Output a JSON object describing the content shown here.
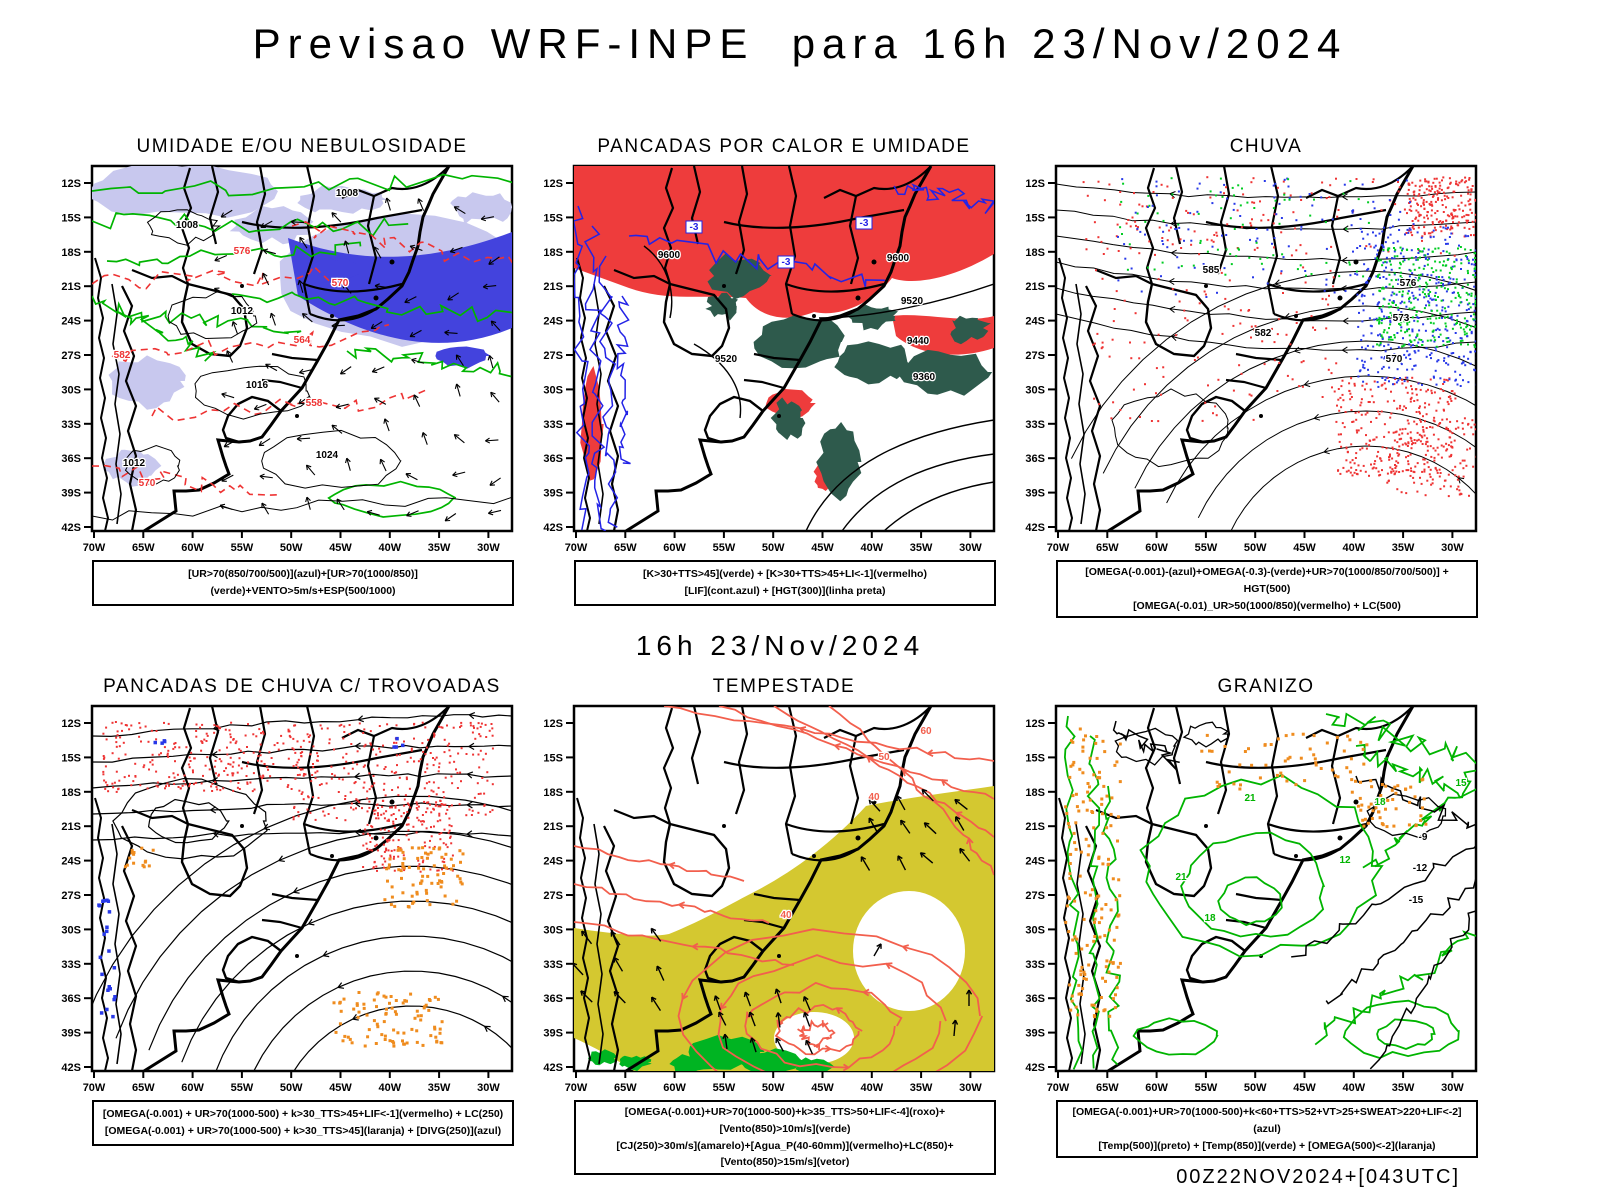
{
  "page": {
    "title": "Previsao WRF-INPE  para 16h 23/Nov/2024",
    "subtitle": "16h 23/Nov/2024",
    "footer": "00Z22NOV2024+[043UTC]"
  },
  "axes": {
    "lat_ticks": [
      "12S",
      "15S",
      "18S",
      "21S",
      "24S",
      "27S",
      "30S",
      "33S",
      "36S",
      "39S",
      "42S"
    ],
    "lon_ticks": [
      "70W",
      "65W",
      "60W",
      "55W",
      "50W",
      "45W",
      "40W",
      "35W",
      "30W"
    ]
  },
  "palette": {
    "royal_blue": "#4343dd",
    "lavender": "#c8c8ee",
    "contour_green": "#00b400",
    "fill_red": "#ee3c3c",
    "dark_teal": "#2e5a4c",
    "contour_blue": "#2323e6",
    "speckle_red": "#ee3333",
    "speckle_blue": "#2738e8",
    "speckle_green": "#00cc22",
    "orange": "#ef8c1e",
    "storm_yellow": "#d4c830",
    "salmon": "#f25f4d",
    "wind_green": "#00b422",
    "black": "#000000"
  },
  "panels": [
    {
      "id": "umidade",
      "title": "UMIDADE E/OU NEBULOSIDADE",
      "caption_lines": [
        "[UR>70(850/700/500)](azul)+[UR>70(1000/850)](verde)+VENTO>5m/s+ESP(500/1000)"
      ],
      "map_labels": [
        {
          "text": "1008",
          "color": "black"
        },
        {
          "text": "1008",
          "color": "black"
        },
        {
          "text": "1012",
          "color": "black"
        },
        {
          "text": "1012",
          "color": "black"
        },
        {
          "text": "1016",
          "color": "black"
        },
        {
          "text": "1024",
          "color": "black"
        },
        {
          "text": "576",
          "color": "red"
        },
        {
          "text": "570",
          "color": "red"
        },
        {
          "text": "582",
          "color": "red"
        },
        {
          "text": "564",
          "color": "red"
        },
        {
          "text": "558",
          "color": "red"
        },
        {
          "text": "570",
          "color": "red"
        }
      ]
    },
    {
      "id": "pancadas-calor",
      "title": "PANCADAS POR CALOR E UMIDADE",
      "caption_lines": [
        "[K>30+TTS>45](verde) + [K>30+TTS>45+LI<-1](vermelho)",
        "[LIF](cont.azul) + [HGT(300)](linha preta)"
      ],
      "map_labels": [
        {
          "text": "9600",
          "color": "black"
        },
        {
          "text": "9600",
          "color": "black"
        },
        {
          "text": "9520",
          "color": "black"
        },
        {
          "text": "9520",
          "color": "black"
        },
        {
          "text": "9440",
          "color": "black"
        },
        {
          "text": "9360",
          "color": "black"
        },
        {
          "text": "-3",
          "color": "blue"
        },
        {
          "text": "-3",
          "color": "blue"
        },
        {
          "text": "-3",
          "color": "blue"
        }
      ]
    },
    {
      "id": "chuva",
      "title": "CHUVA",
      "caption_lines": [
        "[OMEGA(-0.001)-(azul)+OMEGA(-0.3)-(verde)+UR>70(1000/850/700/500)] + HGT(500)",
        "[OMEGA(-0.01)_UR>50(1000/850)(vermelho) + LC(500)"
      ],
      "map_labels": [
        {
          "text": "585",
          "color": "black"
        },
        {
          "text": "582",
          "color": "black"
        },
        {
          "text": "576",
          "color": "black"
        },
        {
          "text": "573",
          "color": "black"
        },
        {
          "text": "570",
          "color": "black"
        }
      ]
    },
    {
      "id": "trovoadas",
      "title": "PANCADAS DE CHUVA C/ TROVOADAS",
      "caption_lines": [
        "[OMEGA(-0.001) + UR>70(1000-500) + k>30_TTS>45+LIF<-1](vermelho) + LC(250)",
        "[OMEGA(-0.001) + UR>70(1000-500) + k>30_TTS>45](laranja) + [DIVG(250)](azul)"
      ],
      "map_labels": []
    },
    {
      "id": "tempestade",
      "title": "TEMPESTADE",
      "caption_lines": [
        "[OMEGA(-0.001)+UR>70(1000-500)+k>35_TTS>50+LIF<-4](roxo)+[Vento(850)>10m/s](verde)",
        "[CJ(250)>30m/s](amarelo)+[Agua_P(40-60mm)](vermelho)+LC(850)+[Vento(850)>15m/s](vetor)"
      ],
      "map_labels": [
        {
          "text": "50",
          "color": "salmon"
        },
        {
          "text": "60",
          "color": "salmon"
        },
        {
          "text": "40",
          "color": "salmon"
        },
        {
          "text": "40",
          "color": "salmon"
        }
      ]
    },
    {
      "id": "granizo",
      "title": "GRANIZO",
      "caption_lines": [
        "[OMEGA(-0.001)+UR>70(1000-500)+k<60+TTS>52+VT>25+SWEAT>220+LIF<-2](azul)",
        "[Temp(500)](preto) + [Temp(850)](verde) + [OMEGA(500)<-2](laranja)"
      ],
      "map_labels": [
        {
          "text": "21",
          "color": "green"
        },
        {
          "text": "21",
          "color": "green"
        },
        {
          "text": "18",
          "color": "green"
        },
        {
          "text": "18",
          "color": "green"
        },
        {
          "text": "12",
          "color": "green"
        },
        {
          "text": "15",
          "color": "green"
        },
        {
          "text": "-9",
          "color": "black"
        },
        {
          "text": "-12",
          "color": "black"
        },
        {
          "text": "-15",
          "color": "black"
        }
      ]
    }
  ]
}
